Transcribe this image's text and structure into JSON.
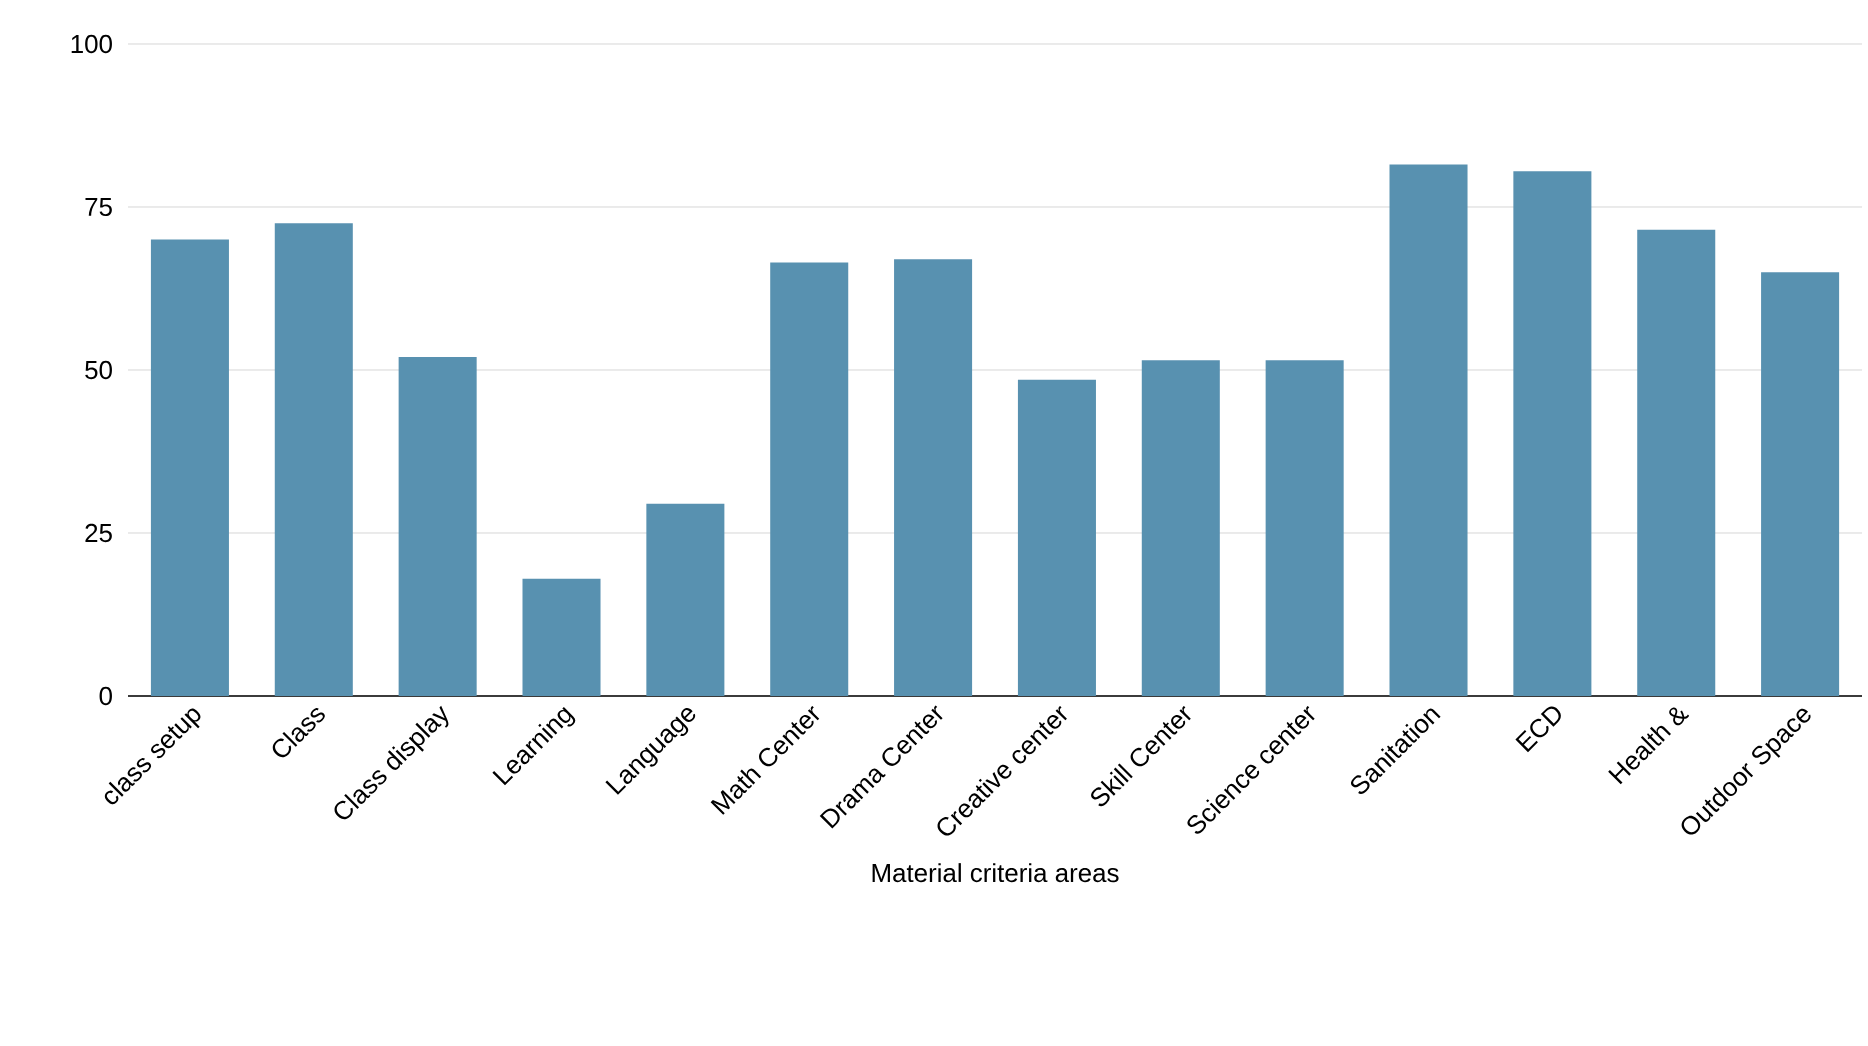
{
  "chart_data": {
    "type": "bar",
    "xlabel": "Material criteria areas",
    "categories": [
      "class setup",
      "Class",
      "Class display",
      "Learning",
      "Language",
      "Math Center",
      "Drama Center",
      "Creative center",
      "Skill Center",
      "Science center",
      "Sanitation",
      "ECD",
      "Health &",
      "Outdoor Space"
    ],
    "values": [
      70,
      72.5,
      52,
      18,
      29.5,
      66.5,
      67,
      48.5,
      51.5,
      51.5,
      81.5,
      80.5,
      71.5,
      65
    ],
    "color": "#5891b0",
    "ylim": [
      0,
      100
    ],
    "yticks": [
      0,
      25,
      50,
      75,
      100
    ],
    "grid": "y"
  }
}
